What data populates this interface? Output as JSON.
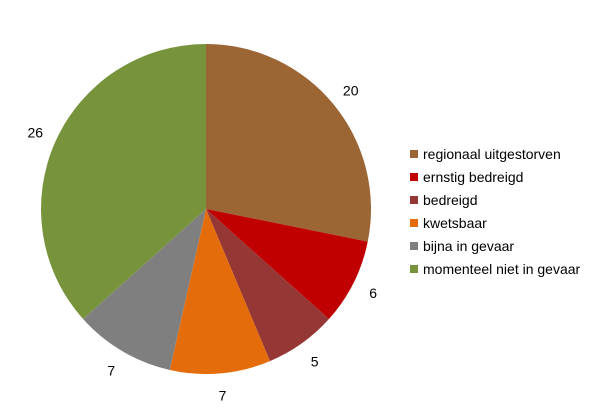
{
  "chart_data": {
    "type": "pie",
    "title": "",
    "categories": [
      "regionaal uitgestorven",
      "ernstig bedreigd",
      "bedreigd",
      "kwetsbaar",
      "bijna in gevaar",
      "momenteel niet in gevaar"
    ],
    "values": [
      20,
      6,
      5,
      7,
      7,
      26
    ],
    "colors": [
      "#9b6534",
      "#c00000",
      "#953735",
      "#e46c0a",
      "#7f7f7f",
      "#77933c"
    ],
    "legend_position": "right",
    "start_angle_deg": 0,
    "direction": "clockwise"
  }
}
